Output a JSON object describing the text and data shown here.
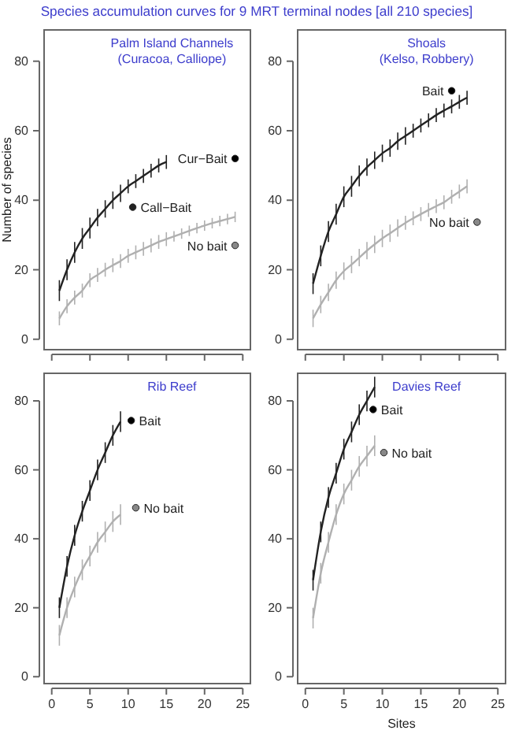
{
  "chart_data": [
    {
      "type": "line",
      "title": "Species accumulation curves for 9 MRT terminal nodes [all 210 species]",
      "ylabel": "Number of species",
      "annotations": [
        "Palm Island Channels",
        "(Curacoa, Calliope)"
      ],
      "xlim": [
        -1,
        26
      ],
      "ylim": [
        -3,
        89
      ],
      "xticks": [
        0,
        5,
        10,
        15,
        20,
        25
      ],
      "yticks": [
        0,
        20,
        40,
        60,
        80
      ],
      "tick_labels": "y",
      "grid": false,
      "series": [
        {
          "color": "#222222",
          "marker": "none",
          "x": [
            1,
            2,
            3,
            4,
            5,
            6,
            7,
            8,
            9,
            10,
            11,
            12,
            13,
            14,
            15
          ],
          "values": [
            14,
            20,
            25,
            29,
            32,
            35,
            37.5,
            40,
            42,
            44,
            45.5,
            47,
            48.5,
            50,
            51
          ],
          "errors": [
            3,
            3,
            3,
            3,
            3,
            2.5,
            2.5,
            2.5,
            2.5,
            2,
            2,
            2,
            2,
            2,
            2
          ]
        },
        {
          "color": "#b0b0b0",
          "marker": "none",
          "x": [
            1,
            2,
            3,
            4,
            5,
            6,
            7,
            8,
            9,
            10,
            11,
            12,
            13,
            14,
            15,
            16,
            17,
            18,
            19,
            20,
            21,
            22,
            23,
            24
          ],
          "values": [
            6,
            9.5,
            12,
            14,
            17,
            18.5,
            20,
            21.3,
            22.5,
            24,
            25,
            26,
            27,
            28,
            28.8,
            29.6,
            30.4,
            31.2,
            32,
            32.7,
            33.4,
            34,
            34.6,
            35.2
          ],
          "errors": [
            2,
            2,
            2,
            2,
            2,
            2,
            2,
            2,
            2,
            2,
            2,
            2,
            2,
            2,
            2,
            1.5,
            1.5,
            1.5,
            1.5,
            1.5,
            1.5,
            1.5,
            1.5,
            1.5
          ]
        },
        {
          "type": "scatter",
          "marker": "circle",
          "name": "Cur−Bait",
          "color": "#000000",
          "x": [
            24
          ],
          "values": [
            52
          ]
        },
        {
          "type": "scatter",
          "marker": "circle",
          "name": "Call−Bait",
          "color": "#222222",
          "x": [
            10.6
          ],
          "values": [
            38
          ]
        },
        {
          "type": "scatter",
          "marker": "circle",
          "name": "No bait",
          "color": "#888888",
          "x": [
            24
          ],
          "values": [
            27
          ]
        }
      ]
    },
    {
      "type": "line",
      "annotations": [
        "Shoals",
        "(Kelso, Robbery)"
      ],
      "xlim": [
        -1,
        26
      ],
      "ylim": [
        -3,
        89
      ],
      "xticks": [
        0,
        5,
        10,
        15,
        20,
        25
      ],
      "yticks": [
        0,
        20,
        40,
        60,
        80
      ],
      "tick_labels": "y",
      "grid": false,
      "series": [
        {
          "color": "#222222",
          "marker": "none",
          "x": [
            1,
            2,
            3,
            4,
            5,
            6,
            7,
            8,
            9,
            10,
            11,
            12,
            13,
            14,
            15,
            16,
            17,
            18,
            19,
            20,
            21
          ],
          "values": [
            16,
            24,
            31,
            36,
            41,
            44,
            47,
            49.5,
            51.5,
            53.5,
            55,
            57,
            58.5,
            60,
            61.5,
            63,
            64.5,
            65.8,
            67,
            68.3,
            69.5
          ],
          "errors": [
            3,
            3,
            3,
            3,
            3,
            3,
            3,
            2.5,
            2.5,
            2.5,
            2.5,
            2.5,
            2.5,
            2,
            2,
            2,
            2,
            2,
            2,
            2,
            2
          ]
        },
        {
          "color": "#b0b0b0",
          "marker": "none",
          "x": [
            1,
            2,
            3,
            4,
            5,
            6,
            7,
            8,
            9,
            10,
            11,
            12,
            13,
            14,
            15,
            16,
            17,
            18,
            19,
            20,
            21
          ],
          "values": [
            6,
            10,
            13.5,
            17,
            19.6,
            21.5,
            23.5,
            25.5,
            27.3,
            29,
            30.5,
            32,
            33.5,
            34.8,
            36,
            37.2,
            38.3,
            39.4,
            41,
            42.5,
            44
          ],
          "errors": [
            2.5,
            2.5,
            2.5,
            2.5,
            2.5,
            2.5,
            2.5,
            2.5,
            2.5,
            2.5,
            2.5,
            2.5,
            2,
            2,
            2,
            2,
            2,
            2,
            2,
            2,
            2
          ]
        },
        {
          "type": "scatter",
          "marker": "circle",
          "name": "Bait",
          "color": "#000000",
          "x": [
            19
          ],
          "values": [
            71.5
          ]
        },
        {
          "type": "scatter",
          "marker": "circle",
          "name": "No bait",
          "color": "#888888",
          "x": [
            22.3
          ],
          "values": [
            33.7
          ]
        }
      ]
    },
    {
      "type": "line",
      "annotations": [
        "Rib Reef"
      ],
      "xlim": [
        -1,
        26
      ],
      "ylim": [
        -2,
        88
      ],
      "xticks": [
        0,
        5,
        10,
        15,
        20,
        25
      ],
      "yticks": [
        0,
        20,
        40,
        60,
        80
      ],
      "grid": false,
      "series": [
        {
          "color": "#222222",
          "marker": "none",
          "x": [
            1,
            2,
            3,
            4,
            5,
            6,
            7,
            8,
            9
          ],
          "values": [
            20,
            32,
            41,
            48,
            54,
            60,
            65,
            70,
            74
          ],
          "errors": [
            3,
            3,
            3,
            3,
            3,
            3,
            3,
            3,
            3
          ]
        },
        {
          "color": "#b0b0b0",
          "marker": "none",
          "x": [
            1,
            2,
            3,
            4,
            5,
            6,
            7,
            8,
            9
          ],
          "values": [
            12,
            20,
            26,
            31,
            35,
            39,
            42,
            45,
            47
          ],
          "errors": [
            3,
            3,
            3,
            3,
            3,
            3,
            3,
            3,
            3
          ]
        },
        {
          "type": "scatter",
          "marker": "circle",
          "name": "Bait",
          "color": "#000000",
          "x": [
            10.4
          ],
          "values": [
            74.3
          ]
        },
        {
          "type": "scatter",
          "marker": "circle",
          "name": "No bait",
          "color": "#888888",
          "x": [
            11
          ],
          "values": [
            49
          ]
        }
      ]
    },
    {
      "type": "line",
      "xlabel": "Sites",
      "annotations": [
        "Davies Reef"
      ],
      "xlim": [
        -1,
        26
      ],
      "ylim": [
        -2,
        88
      ],
      "xticks": [
        0,
        5,
        10,
        15,
        20,
        25
      ],
      "yticks": [
        0,
        20,
        40,
        60,
        80
      ],
      "grid": false,
      "series": [
        {
          "color": "#222222",
          "marker": "none",
          "x": [
            1,
            2,
            3,
            4,
            5,
            6,
            7,
            8,
            9
          ],
          "values": [
            28,
            42,
            52,
            59,
            66,
            71,
            76,
            80,
            84
          ],
          "errors": [
            3,
            3,
            3,
            3,
            3,
            3,
            3,
            3,
            3
          ]
        },
        {
          "color": "#b0b0b0",
          "marker": "none",
          "x": [
            1,
            2,
            3,
            4,
            5,
            6,
            7,
            8,
            9
          ],
          "values": [
            17,
            30,
            39,
            47,
            53,
            57,
            61,
            64,
            67
          ],
          "errors": [
            3,
            3,
            3,
            3,
            3,
            3,
            3,
            3,
            3
          ]
        },
        {
          "type": "scatter",
          "marker": "circle",
          "name": "Bait",
          "color": "#000000",
          "x": [
            8.8
          ],
          "values": [
            77.5
          ]
        },
        {
          "type": "scatter",
          "marker": "circle",
          "name": "No bait",
          "color": "#888888",
          "x": [
            10.2
          ],
          "values": [
            65
          ]
        }
      ]
    }
  ]
}
